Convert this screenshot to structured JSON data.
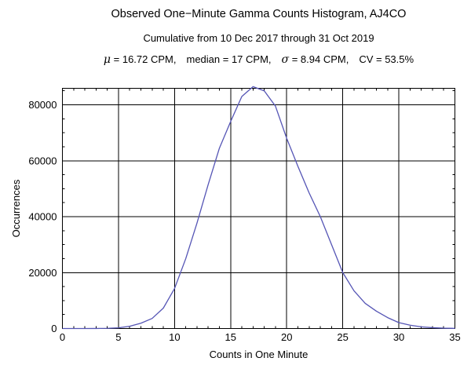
{
  "header": {
    "title": "Observed One−Minute Gamma Counts Histogram, AJ4CO",
    "subtitle": "Cumulative from 10 Dec 2017 through 31 Oct 2019",
    "stats": {
      "mu_symbol": "μ",
      "mu_text": " = 16.72 CPM,",
      "median_text": "median = 17 CPM,",
      "sigma_symbol": "σ",
      "sigma_text": " = 8.94 CPM,",
      "cv_text": "CV = 53.5%"
    }
  },
  "chart_data": {
    "type": "line",
    "title": "Observed One−Minute Gamma Counts Histogram, AJ4CO",
    "subtitle": "Cumulative from 10 Dec 2017 through 31 Oct 2019",
    "annotation": "μ = 16.72 CPM, median = 17 CPM, σ = 8.94 CPM, CV = 53.5%",
    "xlabel": "Counts in One Minute",
    "ylabel": "Occurrences",
    "xlim": [
      0,
      35
    ],
    "ylim": [
      0,
      85900
    ],
    "grid": true,
    "legend": "none",
    "x_major_ticks": [
      0,
      5,
      10,
      15,
      20,
      25,
      30,
      35
    ],
    "x_minor_step": 1,
    "y_major_ticks": [
      0,
      20000,
      40000,
      60000,
      80000
    ],
    "y_minor_step": 5000,
    "x_tick_labels": [
      "0",
      "5",
      "10",
      "15",
      "20",
      "25",
      "30",
      "35"
    ],
    "y_tick_labels": [
      "0",
      "20000",
      "40000",
      "60000",
      "80000"
    ],
    "x": [
      0,
      1,
      2,
      3,
      4,
      5,
      6,
      7,
      8,
      9,
      10,
      11,
      12,
      13,
      14,
      15,
      16,
      17,
      18,
      19,
      20,
      21,
      22,
      23,
      24,
      25,
      26,
      27,
      28,
      29,
      30,
      31,
      32,
      33,
      34,
      35
    ],
    "values": [
      0,
      0,
      0,
      20,
      70,
      250,
      800,
      1900,
      3600,
      7300,
      14300,
      25000,
      37700,
      51500,
      64500,
      74000,
      83000,
      86500,
      85000,
      79500,
      68000,
      58000,
      48500,
      40000,
      30000,
      20000,
      13500,
      9000,
      6200,
      3900,
      2100,
      1200,
      600,
      300,
      120,
      50
    ],
    "peak": {
      "x": 17,
      "value": 86500
    },
    "line_color": "#5555b5",
    "frame_color": "#000000",
    "grid_color": "#000000",
    "background": "#ffffff"
  }
}
